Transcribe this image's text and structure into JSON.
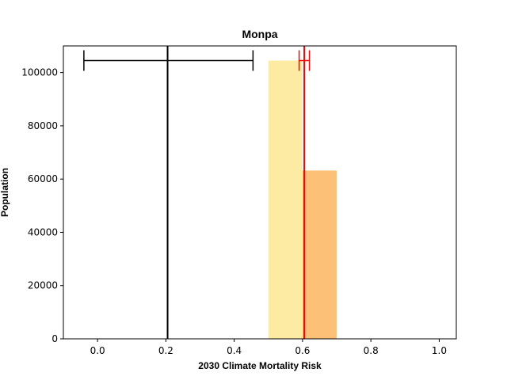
{
  "chart_data": {
    "type": "bar",
    "title": "Monpa",
    "xlabel": "2030 Climate Mortality Risk",
    "ylabel": "Population",
    "xlim": [
      -0.1,
      1.05
    ],
    "ylim": [
      0,
      110000
    ],
    "x_ticks": [
      "0.0",
      "0.2",
      "0.4",
      "0.6",
      "0.8",
      "1.0"
    ],
    "y_ticks": [
      "0",
      "20000",
      "40000",
      "60000",
      "80000",
      "100000"
    ],
    "grid": false,
    "bars": [
      {
        "x_start": 0.5,
        "x_end": 0.6,
        "value": 104500,
        "color": "#fdeba4"
      },
      {
        "x_start": 0.6,
        "x_end": 0.7,
        "value": 63200,
        "color": "#fdc077"
      }
    ],
    "reference_lines": [
      {
        "x": 0.205,
        "color": "#000000",
        "error_bar": {
          "low": -0.04,
          "high": 0.455,
          "y": 104500
        }
      },
      {
        "x": 0.605,
        "color": "#ff0000",
        "error_bar": {
          "low": 0.59,
          "high": 0.62,
          "y": 104500
        }
      }
    ]
  }
}
